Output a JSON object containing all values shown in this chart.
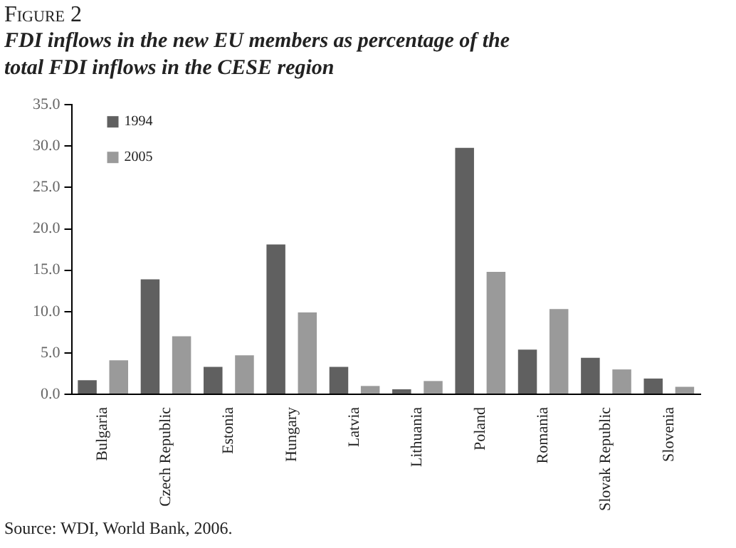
{
  "chart_data": {
    "type": "bar",
    "title": "Figure 2",
    "subtitle": "FDI inflows in the new EU members as percentage of the total FDI inflows in the CESE region",
    "categories": [
      "Bulgaria",
      "Czech Republic",
      "Estonia",
      "Hungary",
      "Latvia",
      "Lithuania",
      "Poland",
      "Romania",
      "Slovak Republic",
      "Slovenia"
    ],
    "series": [
      {
        "name": "1994",
        "color": "#606060",
        "values": [
          1.7,
          13.9,
          3.3,
          18.1,
          3.3,
          0.6,
          29.8,
          5.4,
          4.4,
          1.9
        ]
      },
      {
        "name": "2005",
        "color": "#9a9a9a",
        "values": [
          4.1,
          7.0,
          4.7,
          9.9,
          1.0,
          1.6,
          14.8,
          10.3,
          3.0,
          0.9
        ]
      }
    ],
    "ylim": [
      0,
      35
    ],
    "yticks": [
      {
        "value": 0,
        "label": "0.0"
      },
      {
        "value": 5,
        "label": "5.0"
      },
      {
        "value": 10,
        "label": "10.0"
      },
      {
        "value": 15,
        "label": "15.0"
      },
      {
        "value": 20,
        "label": "20.0"
      },
      {
        "value": 25,
        "label": "25.0"
      },
      {
        "value": 30,
        "label": "30.0"
      },
      {
        "value": 35,
        "label": "35.0"
      }
    ],
    "grid": false,
    "legend": "top left",
    "annotations": [
      "Source: WDI, World Bank, 2006."
    ]
  }
}
